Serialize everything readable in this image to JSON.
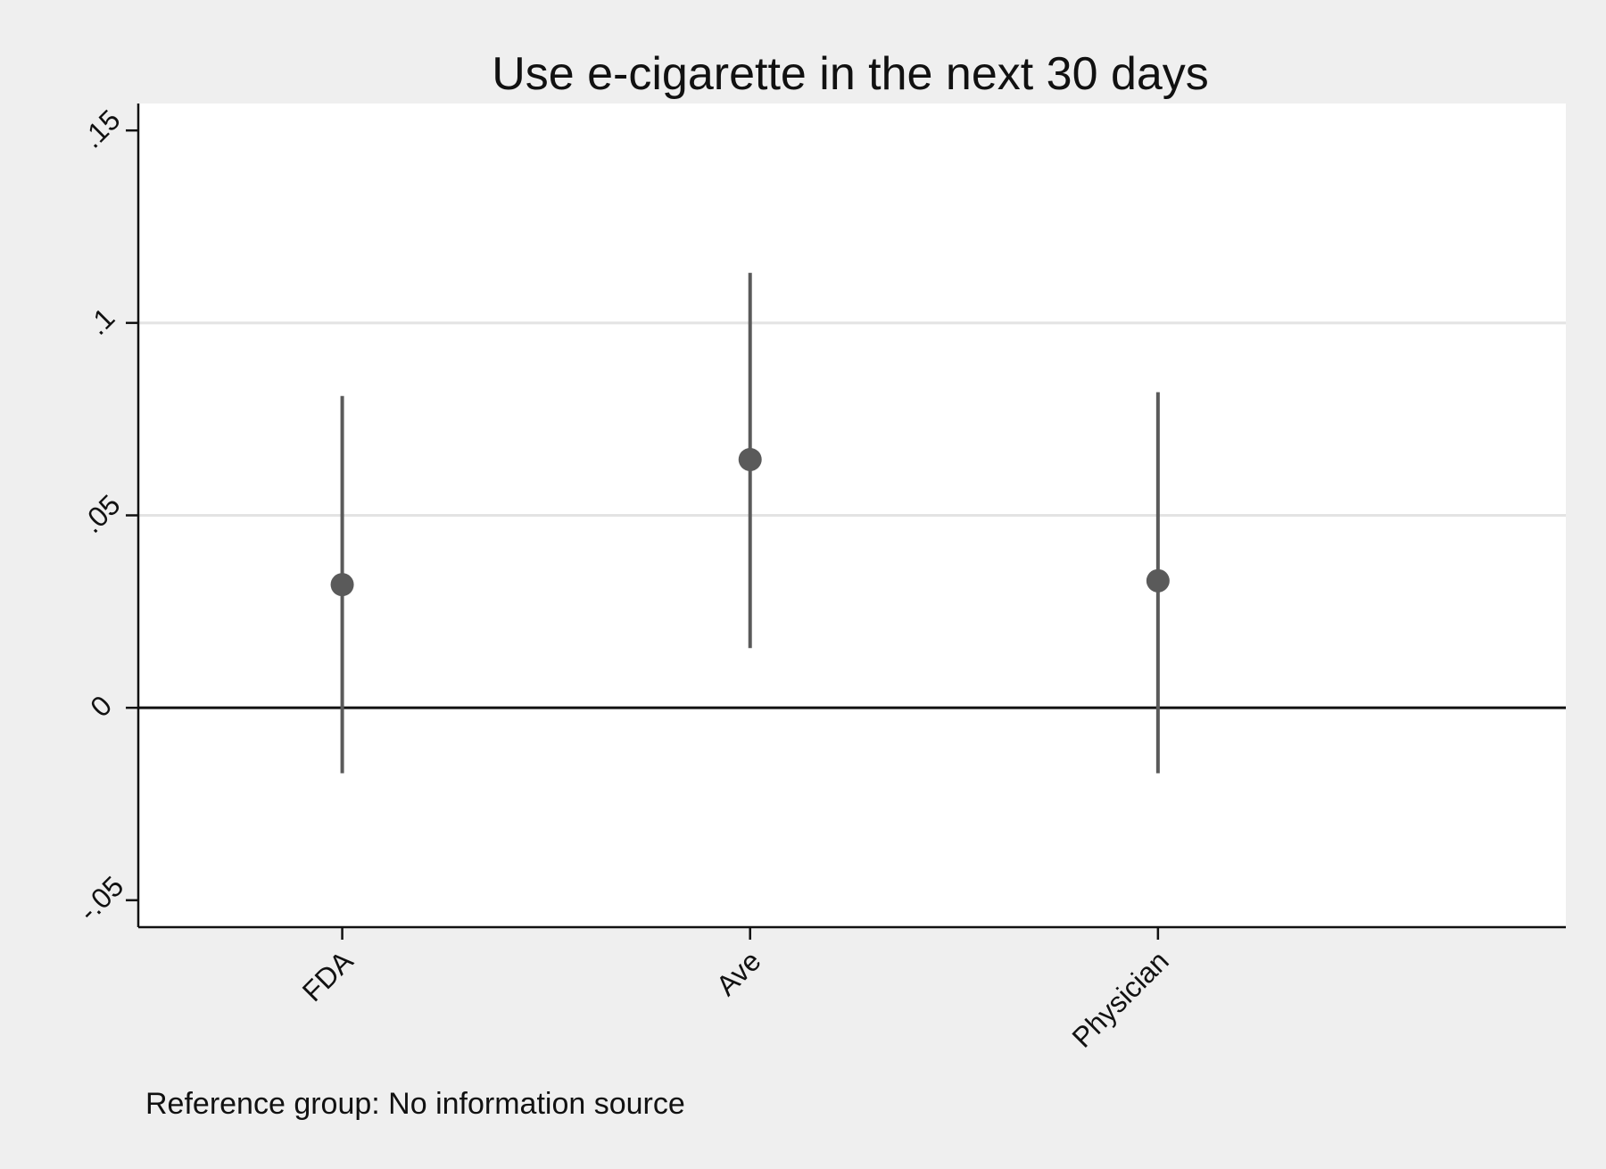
{
  "chart_data": {
    "type": "scatter",
    "title": "Use e-cigarette in the next 30 days",
    "xlabel": "",
    "ylabel": "",
    "categories": [
      "FDA",
      "Ave",
      "Physician"
    ],
    "estimates": [
      0.032,
      0.0645,
      0.033
    ],
    "ci_lower": [
      -0.017,
      0.0155,
      -0.017
    ],
    "ci_upper": [
      0.081,
      0.113,
      0.082
    ],
    "ylim": [
      -0.057,
      0.157
    ],
    "y_ticks": [
      -0.05,
      0,
      0.05,
      0.1,
      0.15
    ],
    "y_tick_labels": [
      "-.05",
      "0",
      ".05",
      ".1",
      ".15"
    ],
    "reference_line": 0,
    "grid": true,
    "note": "Reference group: No information source",
    "colors": {
      "background": "#efefef",
      "plot_area": "#ffffff",
      "marker": "#5a5a5a",
      "grid": "#e3e3e3",
      "axis": "#111111"
    }
  }
}
